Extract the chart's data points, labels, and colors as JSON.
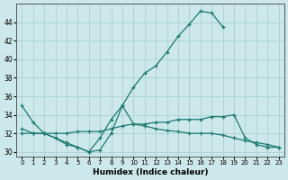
{
  "xlabel": "Humidex (Indice chaleur)",
  "background_color": "#cde8ea",
  "grid_color": "#aacfd2",
  "line_color": "#1a7a6e",
  "ylim": [
    29.5,
    46.0
  ],
  "yticks": [
    30,
    32,
    34,
    36,
    38,
    40,
    42,
    44
  ],
  "xlim": [
    -0.5,
    23.5
  ],
  "xticks": [
    0,
    1,
    2,
    3,
    4,
    5,
    6,
    7,
    8,
    9,
    10,
    11,
    12,
    13,
    14,
    15,
    16,
    17,
    18,
    19,
    20,
    21,
    22,
    23
  ],
  "series1": {
    "x": [
      0,
      1,
      2,
      3,
      4,
      5,
      6,
      7,
      8,
      9,
      10,
      11,
      12,
      13,
      14,
      15,
      16,
      17,
      18
    ],
    "y": [
      35.0,
      33.2,
      32.0,
      31.5,
      31.0,
      30.5,
      30.0,
      31.5,
      33.5,
      35.0,
      37.0,
      38.5,
      39.3,
      40.8,
      42.5,
      43.8,
      45.2,
      45.0,
      43.5
    ]
  },
  "series2": {
    "x": [
      0,
      1,
      2,
      3,
      4,
      5,
      6,
      7,
      8,
      9,
      10,
      11,
      12,
      13,
      14,
      15,
      16,
      17,
      18,
      19,
      20,
      21,
      22,
      23
    ],
    "y": [
      32.0,
      32.0,
      32.0,
      32.0,
      32.0,
      32.2,
      32.2,
      32.2,
      32.5,
      32.8,
      33.0,
      33.0,
      33.2,
      33.2,
      33.5,
      33.5,
      33.5,
      33.8,
      33.8,
      34.0,
      31.5,
      30.8,
      30.5,
      30.5
    ]
  },
  "series3": {
    "x": [
      0,
      1,
      2,
      3,
      4,
      5,
      6,
      7,
      8,
      9,
      10,
      11,
      12,
      13,
      14,
      15,
      16,
      17,
      18,
      19,
      20,
      21,
      22,
      23
    ],
    "y": [
      32.5,
      32.0,
      32.0,
      31.5,
      30.8,
      30.5,
      30.0,
      30.2,
      32.0,
      35.0,
      33.0,
      32.8,
      32.5,
      32.3,
      32.2,
      32.0,
      32.0,
      32.0,
      31.8,
      31.5,
      31.2,
      31.0,
      30.8,
      30.5
    ]
  }
}
